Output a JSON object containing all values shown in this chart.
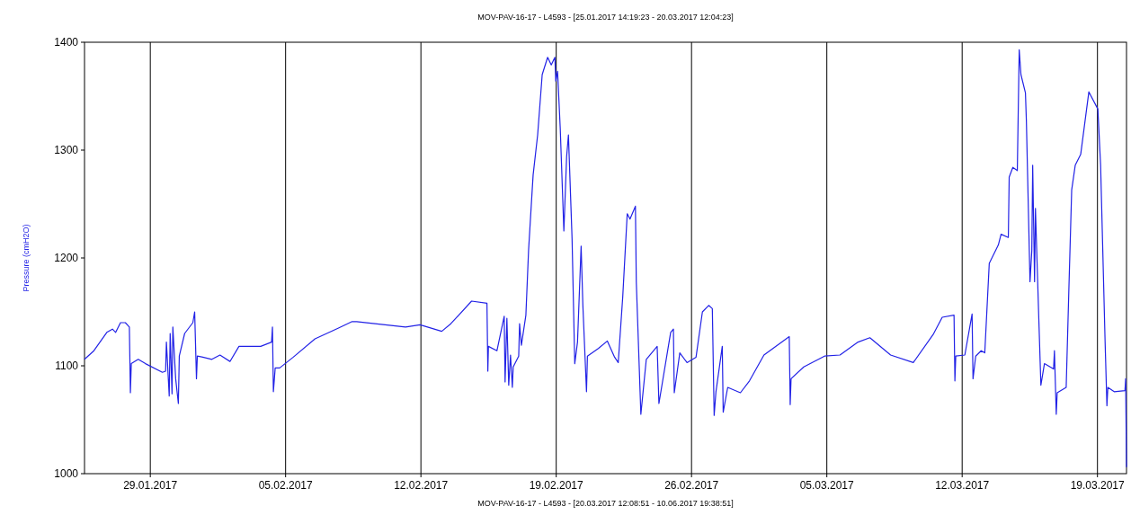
{
  "chart_data": {
    "type": "line",
    "title": "MOV-PAV-16-17 - L4593 -  [25.01.2017 14:19:23 - 20.03.2017 12:04:23]",
    "ylabel": "Pressure (cmH2O)",
    "annotations": [
      "MOV-PAV-16-17 - L4593 -  [20.03.2017 12:08:51 - 10.06.2017 19:38:51]"
    ],
    "xlim": [
      "2017-01-25T14:19",
      "2017-03-20T12:04"
    ],
    "xticks": [
      {
        "value": "2017-01-29",
        "label": "29.01.2017"
      },
      {
        "value": "2017-02-05",
        "label": "05.02.2017"
      },
      {
        "value": "2017-02-12",
        "label": "12.02.2017"
      },
      {
        "value": "2017-02-19",
        "label": "19.02.2017"
      },
      {
        "value": "2017-02-26",
        "label": "26.02.2017"
      },
      {
        "value": "2017-03-05",
        "label": "05.03.2017"
      },
      {
        "value": "2017-03-12",
        "label": "12.03.2017"
      },
      {
        "value": "2017-03-19",
        "label": "19.03.2017"
      }
    ],
    "ylim": [
      1000,
      1400
    ],
    "yticks": [
      1000,
      1100,
      1200,
      1300,
      1400
    ],
    "grid": "x",
    "series": [
      {
        "color": "#2222e6",
        "line_style": "solid",
        "x": [
          "2017-01-25T14:19",
          "2017-01-26T02:00",
          "2017-01-26T18:00",
          "2017-01-27T01:00",
          "2017-01-27T05:00",
          "2017-01-27T11:00",
          "2017-01-27T17:00",
          "2017-01-27T22:00",
          "2017-01-27T23:18",
          "2017-01-28T00:24",
          "2017-01-28T09:00",
          "2017-01-28T18:00",
          "2017-01-29T15:00",
          "2017-01-29T19:00",
          "2017-01-29T20:00",
          "2017-01-29T23:30",
          "2017-01-30T00:40",
          "2017-01-30T03:00",
          "2017-01-30T04:00",
          "2017-01-30T07:30",
          "2017-01-30T10:50",
          "2017-01-30T12:00",
          "2017-01-30T18:40",
          "2017-01-31T04:50",
          "2017-01-31T07:05",
          "2017-01-31T09:20",
          "2017-01-31T10:25",
          "2017-01-31T17:10",
          "2017-02-01T04:25",
          "2017-02-01T14:30",
          "2017-02-02T02:55",
          "2017-02-02T14:05",
          "2017-02-03T17:05",
          "2017-02-04T06:35",
          "2017-02-04T07:40",
          "2017-02-04T08:50",
          "2017-02-04T11:05",
          "2017-02-04T16:40",
          "2017-02-05T09:30",
          "2017-02-06T12:30",
          "2017-02-07T17:40",
          "2017-02-08T10:35",
          "2017-02-08T16:10",
          "2017-02-11T04:55",
          "2017-02-11T22:55",
          "2017-02-13T01:50",
          "2017-02-13T13:05",
          "2017-02-14T14:55",
          "2017-02-15T10:00",
          "2017-02-15T11:05",
          "2017-02-15T11:50",
          "2017-02-15T22:25",
          "2017-02-16T07:25",
          "2017-02-16T08:30",
          "2017-02-16T10:45",
          "2017-02-16T13:00",
          "2017-02-16T15:15",
          "2017-02-16T17:30",
          "2017-02-16T18:35",
          "2017-02-17T01:25",
          "2017-02-17T02:30",
          "2017-02-17T04:45",
          "2017-02-17T10:20",
          "2017-02-17T13:40",
          "2017-02-17T18:10",
          "2017-02-17T19:20",
          "2017-02-18T00:55",
          "2017-02-18T06:35",
          "2017-02-18T13:20",
          "2017-02-18T17:50",
          "2017-02-18T22:20",
          "2017-02-18T23:25",
          "2017-02-19T01:40",
          "2017-02-19T05:00",
          "2017-02-19T09:30",
          "2017-02-19T12:55",
          "2017-02-19T15:10",
          "2017-02-19T19:40",
          "2017-02-19T23:00",
          "2017-02-20T02:25",
          "2017-02-20T06:55",
          "2017-02-20T09:05",
          "2017-02-20T13:35",
          "2017-02-20T14:45",
          "2017-02-21T04:15",
          "2017-02-21T15:30",
          "2017-02-22T00:30",
          "2017-02-22T05:00",
          "2017-02-22T10:35",
          "2017-02-22T16:10",
          "2017-02-22T19:35",
          "2017-02-23T02:20",
          "2017-02-23T03:25",
          "2017-02-23T09:05",
          "2017-02-23T15:50",
          "2017-02-24T05:20",
          "2017-02-24T07:30",
          "2017-02-24T22:05",
          "2017-02-25T01:30",
          "2017-02-25T02:35",
          "2017-02-25T09:25",
          "2017-02-25T18:25",
          "2017-02-26T05:35",
          "2017-02-26T13:30",
          "2017-02-26T21:20",
          "2017-02-27T01:50",
          "2017-02-27T04:05",
          "2017-02-27T06:20",
          "2017-02-27T14:10",
          "2017-02-27T15:20",
          "2017-02-27T20:55",
          "2017-02-28T12:40",
          "2017-02-28T23:55",
          "2017-03-01T17:55",
          "2017-03-03T01:20",
          "2017-03-03T02:30",
          "2017-03-03T03:35",
          "2017-03-03T19:20",
          "2017-03-04T21:10",
          "2017-03-05T16:20",
          "2017-03-06T14:45",
          "2017-03-07T05:25",
          "2017-03-08T07:10",
          "2017-03-09T11:20",
          "2017-03-10T12:00",
          "2017-03-10T23:15",
          "2017-03-11T13:55",
          "2017-03-11T15:00",
          "2017-03-11T16:05",
          "2017-03-12T03:20",
          "2017-03-12T12:20",
          "2017-03-12T13:30",
          "2017-03-12T16:50",
          "2017-03-12T23:35",
          "2017-03-13T04:05",
          "2017-03-13T09:40",
          "2017-03-13T20:55",
          "2017-03-14T00:20",
          "2017-03-14T09:20",
          "2017-03-14T10:25",
          "2017-03-14T14:55",
          "2017-03-14T20:30",
          "2017-03-14T22:50",
          "2017-03-15T01:00",
          "2017-03-15T06:35",
          "2017-03-15T07:45",
          "2017-03-15T12:15",
          "2017-03-15T14:30",
          "2017-03-15T15:35",
          "2017-03-15T17:55",
          "2017-03-15T19:00",
          "2017-03-15T23:30",
          "2017-03-16T01:45",
          "2017-03-16T06:10",
          "2017-03-16T17:30",
          "2017-03-16T18:35",
          "2017-03-16T20:50",
          "2017-03-16T22:00",
          "2017-03-17T09:10",
          "2017-03-17T12:35",
          "2017-03-17T16:00",
          "2017-03-17T20:25",
          "2017-03-18T03:10",
          "2017-03-18T13:20",
          "2017-03-19T00:30",
          "2017-03-19T03:55",
          "2017-03-19T09:30",
          "2017-03-19T11:45",
          "2017-03-19T12:55",
          "2017-03-19T20:45",
          "2017-03-20T10:10",
          "2017-03-20T11:00",
          "2017-03-20T12:04"
        ],
        "values": [
          1106,
          1114,
          1131,
          1134,
          1131,
          1140,
          1140,
          1136,
          1075,
          1102,
          1106,
          1102,
          1094,
          1095,
          1122,
          1072,
          1130,
          1074,
          1136,
          1088,
          1065,
          1109,
          1130,
          1140,
          1150,
          1088,
          1109,
          1108,
          1106,
          1110,
          1104,
          1118,
          1118,
          1122,
          1136,
          1076,
          1098,
          1098,
          1108,
          1125,
          1135,
          1141,
          1141,
          1136,
          1138,
          1132,
          1139,
          1160,
          1158,
          1095,
          1118,
          1114,
          1146,
          1085,
          1144,
          1082,
          1110,
          1080,
          1099,
          1109,
          1139,
          1119,
          1147,
          1207,
          1263,
          1277,
          1314,
          1370,
          1386,
          1379,
          1386,
          1364,
          1373,
          1320,
          1225,
          1294,
          1314,
          1218,
          1102,
          1122,
          1211,
          1156,
          1076,
          1109,
          1116,
          1123,
          1108,
          1103,
          1164,
          1241,
          1236,
          1248,
          1178,
          1055,
          1106,
          1118,
          1065,
          1131,
          1134,
          1075,
          1112,
          1103,
          1108,
          1150,
          1156,
          1153,
          1054,
          1076,
          1118,
          1057,
          1080,
          1075,
          1086,
          1110,
          1127,
          1064,
          1088,
          1099,
          1109,
          1110,
          1122,
          1126,
          1110,
          1103,
          1129,
          1145,
          1147,
          1086,
          1109,
          1110,
          1148,
          1088,
          1109,
          1114,
          1112,
          1195,
          1212,
          1222,
          1219,
          1275,
          1284,
          1281,
          1393,
          1370,
          1353,
          1327,
          1178,
          1207,
          1286,
          1178,
          1246,
          1136,
          1082,
          1102,
          1097,
          1114,
          1055,
          1075,
          1080,
          1173,
          1263,
          1286,
          1296,
          1354,
          1338,
          1286,
          1122,
          1063,
          1080,
          1076,
          1077,
          1088,
          1006
        ]
      }
    ]
  }
}
